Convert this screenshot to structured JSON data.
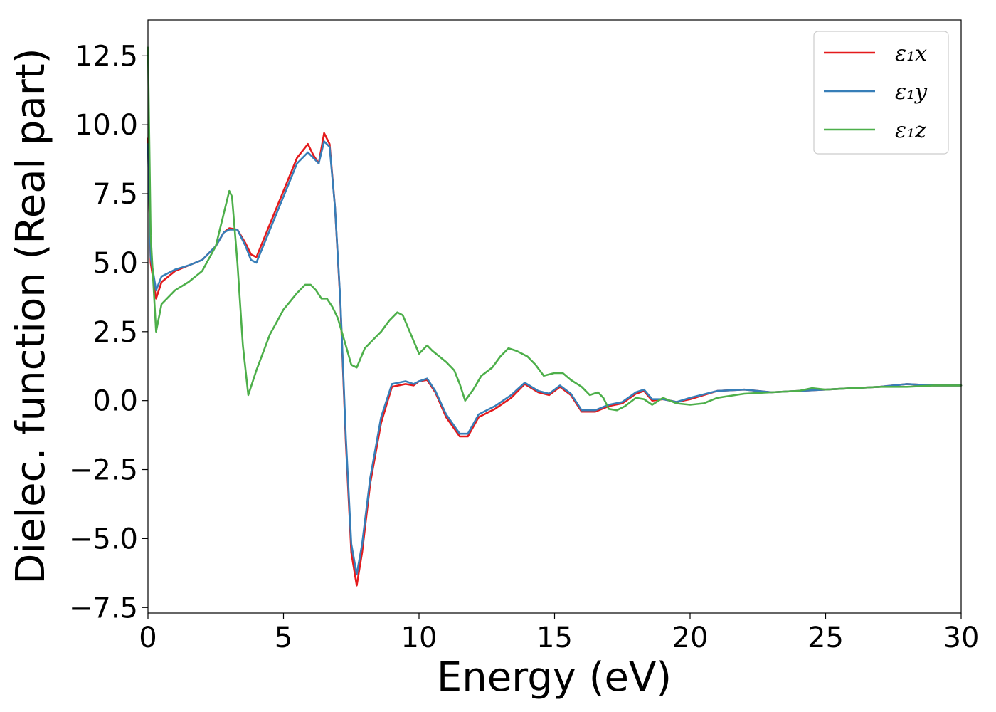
{
  "chart_data": {
    "type": "line",
    "title": "",
    "xlabel": "Energy (eV)",
    "ylabel": "Dielec. function (Real part)",
    "xlim": [
      0,
      30
    ],
    "ylim": [
      -7.7,
      13.8
    ],
    "xticks": [
      0,
      5,
      10,
      15,
      20,
      25,
      30
    ],
    "xtick_labels": [
      "0",
      "5",
      "10",
      "15",
      "20",
      "25",
      "30"
    ],
    "yticks": [
      -7.5,
      -5.0,
      -2.5,
      0.0,
      2.5,
      5.0,
      7.5,
      10.0,
      12.5
    ],
    "ytick_labels": [
      "−7.5",
      "−5.0",
      "−2.5",
      "0.0",
      "2.5",
      "5.0",
      "7.5",
      "10.0",
      "12.5"
    ],
    "grid": false,
    "legend_position": "top-right",
    "series": [
      {
        "name": "x",
        "legend_label": "ε₁x",
        "color": "#e41a1c",
        "x": [
          0,
          0.1,
          0.3,
          0.5,
          1.0,
          1.5,
          2.0,
          2.5,
          2.8,
          3.0,
          3.3,
          3.6,
          3.8,
          4.0,
          4.5,
          5.0,
          5.5,
          5.9,
          6.1,
          6.3,
          6.5,
          6.7,
          6.9,
          7.1,
          7.3,
          7.5,
          7.7,
          7.9,
          8.2,
          8.6,
          9.0,
          9.5,
          9.8,
          10.0,
          10.3,
          10.6,
          11.0,
          11.5,
          11.8,
          12.2,
          12.8,
          13.4,
          13.9,
          14.4,
          14.8,
          15.2,
          15.6,
          16.0,
          16.5,
          17.0,
          17.5,
          18.0,
          18.3,
          18.6,
          19.0,
          19.5,
          20.0,
          21.0,
          22.0,
          23.0,
          24.0,
          25.0,
          26.0,
          27.0,
          28.0,
          29.0,
          30.0
        ],
        "y": [
          9.5,
          5.0,
          3.7,
          4.3,
          4.7,
          4.9,
          5.1,
          5.6,
          6.1,
          6.25,
          6.2,
          5.7,
          5.3,
          5.2,
          6.4,
          7.6,
          8.8,
          9.3,
          8.9,
          8.6,
          9.7,
          9.3,
          7.0,
          3.5,
          -1.5,
          -5.5,
          -6.7,
          -5.5,
          -3.0,
          -0.8,
          0.5,
          0.6,
          0.55,
          0.7,
          0.75,
          0.3,
          -0.6,
          -1.3,
          -1.3,
          -0.6,
          -0.3,
          0.1,
          0.6,
          0.3,
          0.2,
          0.5,
          0.2,
          -0.4,
          -0.4,
          -0.2,
          -0.1,
          0.25,
          0.35,
          0.0,
          0.05,
          -0.05,
          0.05,
          0.35,
          0.4,
          0.3,
          0.35,
          0.4,
          0.45,
          0.5,
          0.6,
          0.55,
          0.55
        ]
      },
      {
        "name": "y",
        "legend_label": "ε₁y",
        "color": "#377eb8",
        "x": [
          0,
          0.1,
          0.3,
          0.5,
          1.0,
          1.5,
          2.0,
          2.5,
          2.8,
          3.0,
          3.3,
          3.6,
          3.8,
          4.0,
          4.5,
          5.0,
          5.5,
          5.9,
          6.1,
          6.3,
          6.5,
          6.7,
          6.9,
          7.1,
          7.3,
          7.5,
          7.7,
          7.9,
          8.2,
          8.6,
          9.0,
          9.5,
          9.8,
          10.0,
          10.3,
          10.6,
          11.0,
          11.5,
          11.8,
          12.2,
          12.8,
          13.4,
          13.9,
          14.4,
          14.8,
          15.2,
          15.6,
          16.0,
          16.5,
          17.0,
          17.5,
          18.0,
          18.3,
          18.6,
          19.0,
          19.5,
          20.0,
          21.0,
          22.0,
          23.0,
          24.0,
          25.0,
          26.0,
          27.0,
          28.0,
          29.0,
          30.0
        ],
        "y": [
          9.3,
          5.2,
          4.0,
          4.5,
          4.75,
          4.9,
          5.1,
          5.6,
          6.1,
          6.2,
          6.2,
          5.6,
          5.1,
          5.0,
          6.2,
          7.4,
          8.6,
          9.0,
          8.8,
          8.6,
          9.4,
          9.2,
          7.0,
          3.6,
          -1.3,
          -5.2,
          -6.3,
          -5.2,
          -2.8,
          -0.6,
          0.6,
          0.7,
          0.6,
          0.7,
          0.8,
          0.35,
          -0.5,
          -1.2,
          -1.2,
          -0.5,
          -0.2,
          0.2,
          0.65,
          0.35,
          0.25,
          0.55,
          0.25,
          -0.35,
          -0.35,
          -0.15,
          -0.05,
          0.3,
          0.4,
          0.05,
          0.05,
          -0.05,
          0.1,
          0.35,
          0.4,
          0.3,
          0.35,
          0.4,
          0.45,
          0.5,
          0.6,
          0.55,
          0.55
        ]
      },
      {
        "name": "z",
        "legend_label": "ε₁z",
        "color": "#4daf4a",
        "x": [
          0,
          0.1,
          0.3,
          0.5,
          1.0,
          1.5,
          2.0,
          2.5,
          2.8,
          3.0,
          3.1,
          3.3,
          3.5,
          3.7,
          4.0,
          4.5,
          5.0,
          5.5,
          5.8,
          6.0,
          6.2,
          6.4,
          6.6,
          6.8,
          7.0,
          7.3,
          7.5,
          7.7,
          8.0,
          8.3,
          8.6,
          8.9,
          9.2,
          9.4,
          9.7,
          10.0,
          10.3,
          10.5,
          11.0,
          11.3,
          11.5,
          11.7,
          12.0,
          12.3,
          12.7,
          13.0,
          13.3,
          13.6,
          14.0,
          14.3,
          14.6,
          15.0,
          15.3,
          15.6,
          16.0,
          16.3,
          16.6,
          16.8,
          17.0,
          17.3,
          17.6,
          18.0,
          18.3,
          18.6,
          19.0,
          19.5,
          20.0,
          20.5,
          21.0,
          22.0,
          23.0,
          24.0,
          24.5,
          25.0,
          26.0,
          27.0,
          28.0,
          29.0,
          30.0
        ],
        "y": [
          12.8,
          6.0,
          2.5,
          3.5,
          4.0,
          4.3,
          4.7,
          5.6,
          6.8,
          7.6,
          7.4,
          5.0,
          2.0,
          0.2,
          1.1,
          2.4,
          3.3,
          3.9,
          4.2,
          4.2,
          4.0,
          3.7,
          3.7,
          3.4,
          3.0,
          2.0,
          1.3,
          1.2,
          1.9,
          2.2,
          2.5,
          2.9,
          3.2,
          3.1,
          2.4,
          1.7,
          2.0,
          1.8,
          1.4,
          1.1,
          0.6,
          0.0,
          0.4,
          0.9,
          1.2,
          1.6,
          1.9,
          1.8,
          1.6,
          1.3,
          0.9,
          1.0,
          1.0,
          0.75,
          0.5,
          0.2,
          0.3,
          0.1,
          -0.3,
          -0.35,
          -0.2,
          0.1,
          0.05,
          -0.15,
          0.1,
          -0.1,
          -0.15,
          -0.1,
          0.1,
          0.25,
          0.3,
          0.35,
          0.45,
          0.4,
          0.45,
          0.5,
          0.5,
          0.55,
          0.55
        ]
      }
    ]
  }
}
